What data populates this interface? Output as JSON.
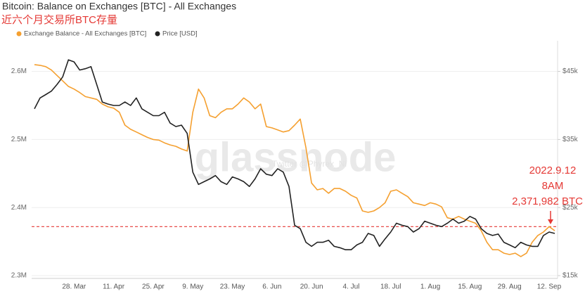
{
  "chart_data": {
    "type": "line",
    "title": "Bitcoin: Balance on Exchanges [BTC] - All Exchanges",
    "subtitle": "近六个月交易所BTC存量",
    "watermark": "glassnode",
    "watermark_2": "Twitter @Phyrex_Ni",
    "categories": [
      null,
      null,
      null,
      null,
      null,
      null,
      null,
      "28. Mar",
      null,
      null,
      null,
      null,
      null,
      null,
      "11. Apr",
      null,
      null,
      null,
      null,
      null,
      null,
      "25. Apr",
      null,
      null,
      null,
      null,
      null,
      null,
      "9. May",
      null,
      null,
      null,
      null,
      null,
      null,
      "23. May",
      null,
      null,
      null,
      null,
      null,
      null,
      "6. Jun",
      null,
      null,
      null,
      null,
      null,
      null,
      "20. Jun",
      null,
      null,
      null,
      null,
      null,
      null,
      "4. Jul",
      null,
      null,
      null,
      null,
      null,
      null,
      "18. Jul",
      null,
      null,
      null,
      null,
      null,
      null,
      "1. Aug",
      null,
      null,
      null,
      null,
      null,
      null,
      "15. Aug",
      null,
      null,
      null,
      null,
      null,
      null,
      "29. Aug",
      null,
      null,
      null,
      null,
      null,
      null,
      "12. Sep",
      null
    ],
    "series": [
      {
        "name": "Exchange Balance - All Exchanges [BTC]",
        "color": "#f5a030",
        "axis": "y",
        "values": [
          2610000,
          2609000,
          2607000,
          2602000,
          2594000,
          2586000,
          2578000,
          2574000,
          2569000,
          2563000,
          2561000,
          2559000,
          2552000,
          2548000,
          2546000,
          2540000,
          2521000,
          2515000,
          2511000,
          2507000,
          2503000,
          2500000,
          2499000,
          2495000,
          2492000,
          2490000,
          2486000,
          2483000,
          2540000,
          2574000,
          2561000,
          2535000,
          2532000,
          2540000,
          2545000,
          2545000,
          2552000,
          2561000,
          2555000,
          2545000,
          2552000,
          2519000,
          2517000,
          2514000,
          2511000,
          2513000,
          2521000,
          2530000,
          2488000,
          2436000,
          2426000,
          2428000,
          2421000,
          2428000,
          2428000,
          2424000,
          2418000,
          2414000,
          2395000,
          2393000,
          2395000,
          2400000,
          2407000,
          2424000,
          2426000,
          2421000,
          2416000,
          2407000,
          2405000,
          2403000,
          2407000,
          2405000,
          2401000,
          2385000,
          2383000,
          2387000,
          2383000,
          2380000,
          2377000,
          2366000,
          2349000,
          2338000,
          2338000,
          2333000,
          2331000,
          2333000,
          2328000,
          2333000,
          2349000,
          2359000,
          2364000,
          2372000,
          2366000
        ]
      },
      {
        "name": "Price [USD]",
        "color": "#222222",
        "axis": "y2",
        "values": [
          39500,
          41100,
          41600,
          42100,
          43100,
          44200,
          46700,
          46400,
          45200,
          45400,
          45700,
          43100,
          40500,
          40200,
          40000,
          40000,
          40500,
          40000,
          41100,
          39500,
          39000,
          38500,
          38500,
          39000,
          37400,
          36900,
          37100,
          35900,
          30200,
          28400,
          28800,
          29200,
          29700,
          28800,
          28400,
          29500,
          29200,
          28800,
          28100,
          29200,
          30700,
          29900,
          29700,
          30700,
          30200,
          28100,
          22400,
          21900,
          19900,
          19300,
          19900,
          19900,
          20200,
          19300,
          19100,
          18800,
          18800,
          19500,
          19900,
          21200,
          20900,
          19300,
          20400,
          21400,
          22700,
          22400,
          22200,
          21400,
          21900,
          23000,
          22700,
          22400,
          22200,
          22700,
          23300,
          22700,
          23000,
          23700,
          23300,
          21900,
          21200,
          20900,
          21100,
          19900,
          19500,
          19100,
          19900,
          19500,
          19300,
          19300,
          20900,
          21400,
          21200
        ]
      }
    ],
    "ylim": [
      2300000,
      2645000
    ],
    "yticks": [
      {
        "value": 2300000,
        "label": "2.3M"
      },
      {
        "value": 2400000,
        "label": "2.4M"
      },
      {
        "value": 2500000,
        "label": "2.5M"
      },
      {
        "value": 2600000,
        "label": "2.6M"
      }
    ],
    "y2lim": [
      15000,
      49500
    ],
    "y2ticks": [
      {
        "value": 15000,
        "label": "$15k"
      },
      {
        "value": 25000,
        "label": "$25k"
      },
      {
        "value": 35000,
        "label": "$35k"
      },
      {
        "value": 45000,
        "label": "$45k"
      }
    ],
    "grid": true,
    "reference_line": {
      "value": 2371982,
      "color": "#e53935"
    },
    "annotation": {
      "lines": [
        "2022.9.12",
        "8AM",
        "2,371,982 BTC"
      ],
      "color": "#e53935"
    }
  }
}
